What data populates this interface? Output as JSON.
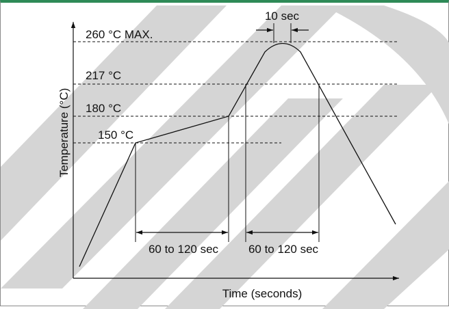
{
  "colors": {
    "frame_border": "#8a8a8a",
    "top_accent": "#2e8a57",
    "watermark": "#d5d5d5",
    "ink": "#111111"
  },
  "diagram": {
    "temperature_levels": [
      {
        "id": "t260",
        "label": "260 °C MAX."
      },
      {
        "id": "t217",
        "label": "217 °C"
      },
      {
        "id": "t180",
        "label": "180 °C"
      },
      {
        "id": "t150",
        "label": "150 °C"
      }
    ],
    "y_axis_label": "Temperature (°C)",
    "x_axis_label": "Time (seconds)",
    "preheat_duration_label": "60 to 120 sec",
    "above_liquidus_duration_label": "60 to 120 sec",
    "peak_duration_label": "10 sec"
  }
}
